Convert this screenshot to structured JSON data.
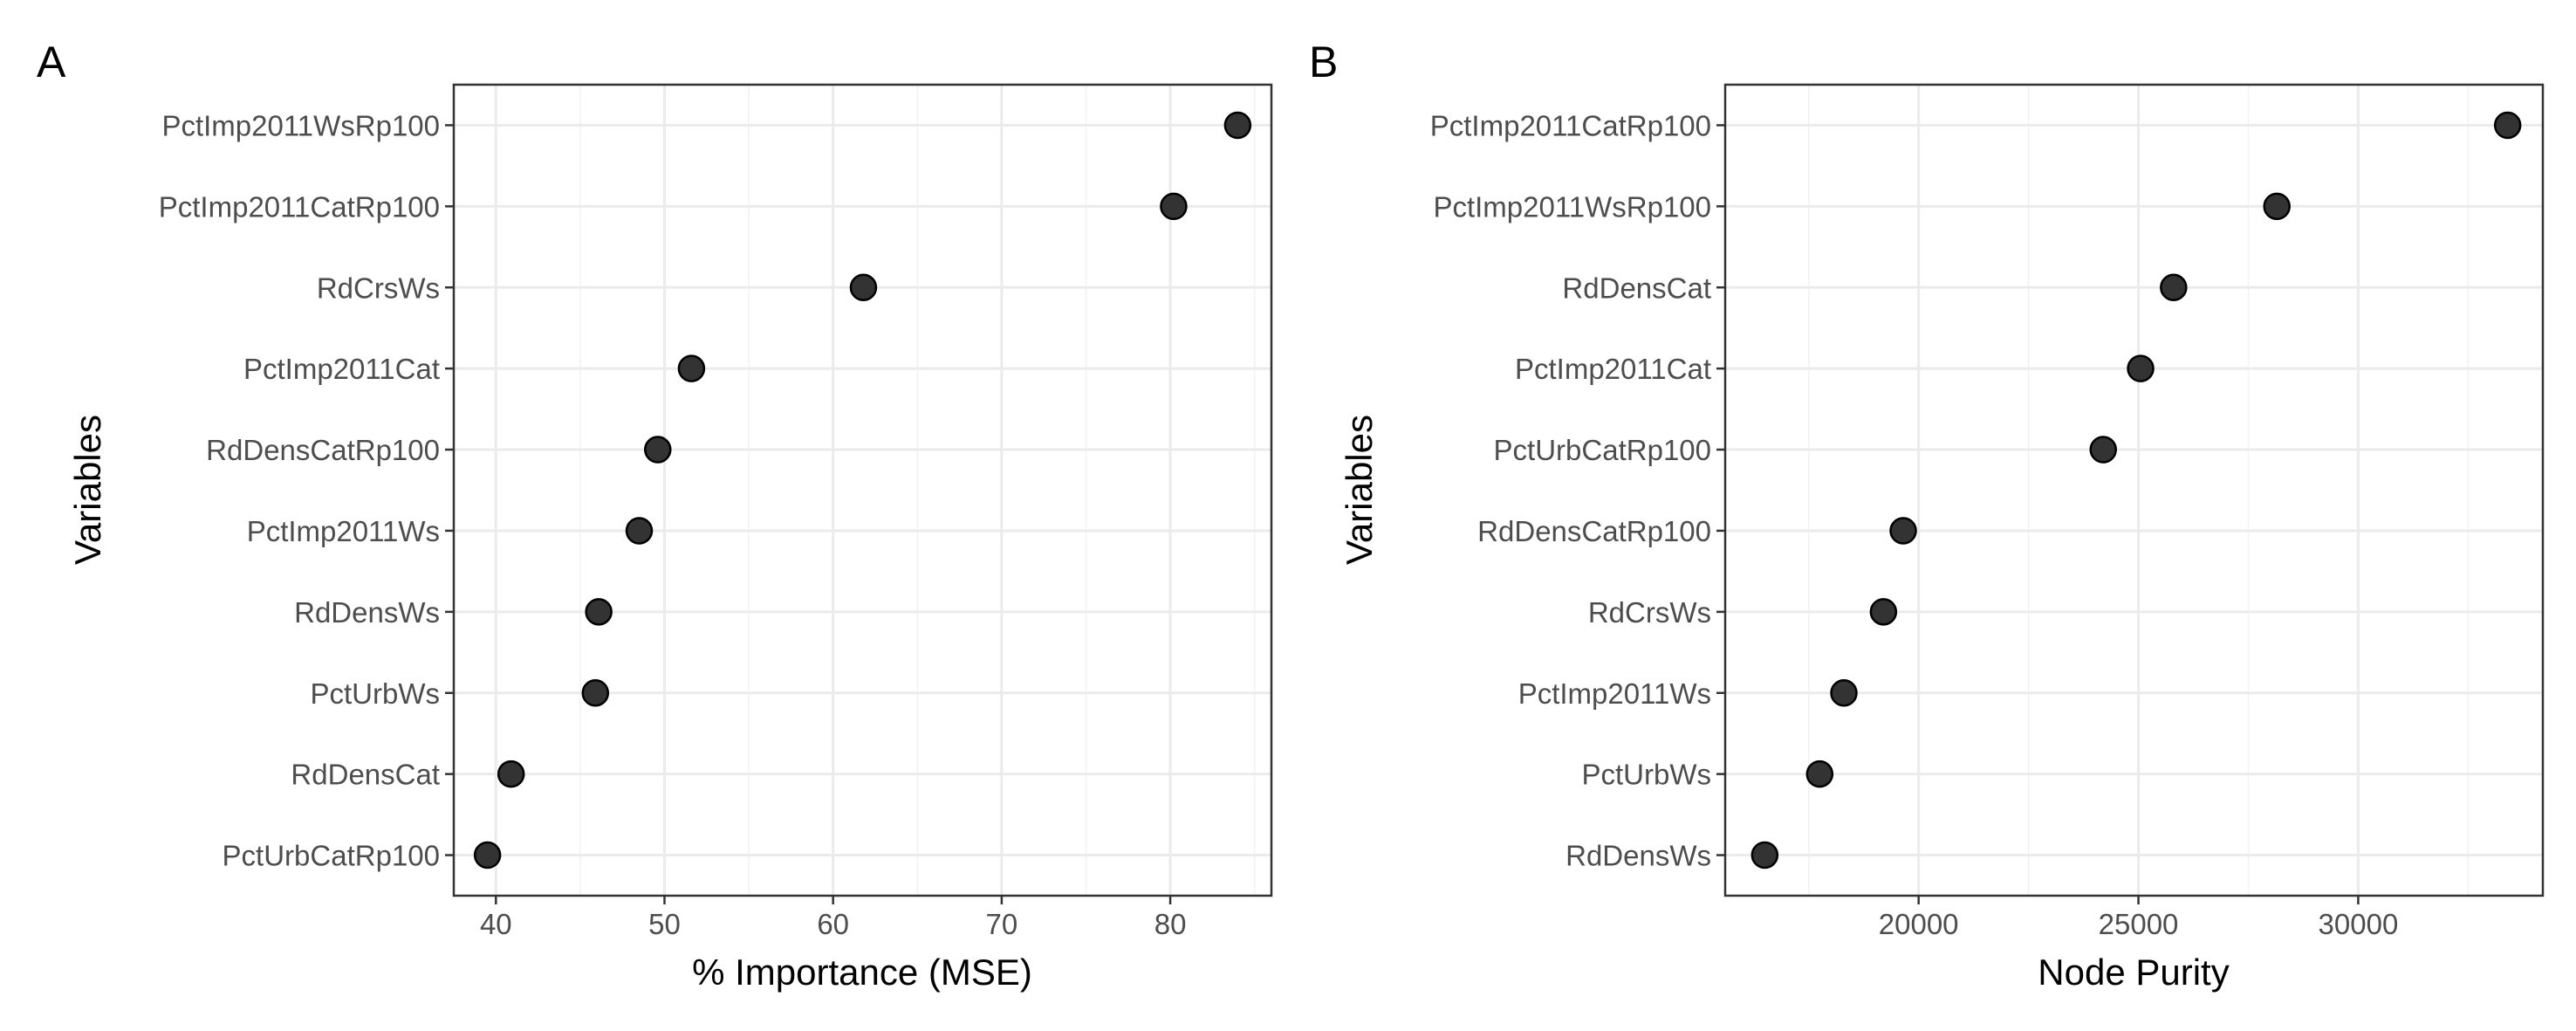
{
  "chart_data": [
    {
      "type": "scatter",
      "panel_label": "A",
      "xlabel": "% Importance (MSE)",
      "ylabel": "Variables",
      "xlim": [
        37.5,
        86
      ],
      "x_ticks": [
        40,
        50,
        60,
        70,
        80
      ],
      "x_tick_labels": [
        "40",
        "50",
        "60",
        "70",
        "80"
      ],
      "grid": true,
      "categories": [
        "PctImp2011WsRp100",
        "PctImp2011CatRp100",
        "RdCrsWs",
        "PctImp2011Cat",
        "RdDensCatRp100",
        "PctImp2011Ws",
        "RdDensWs",
        "PctUrbWs",
        "RdDensCat",
        "PctUrbCatRp100"
      ],
      "values": [
        84.0,
        80.2,
        61.8,
        51.6,
        49.6,
        48.5,
        46.1,
        45.9,
        40.9,
        39.5
      ]
    },
    {
      "type": "scatter",
      "panel_label": "B",
      "xlabel": "Node Purity",
      "ylabel": "Variables",
      "xlim": [
        15600,
        34200
      ],
      "x_ticks": [
        20000,
        25000,
        30000
      ],
      "x_tick_labels": [
        "20000",
        "25000",
        "30000"
      ],
      "grid": true,
      "categories": [
        "PctImp2011CatRp100",
        "PctImp2011WsRp100",
        "RdDensCat",
        "PctImp2011Cat",
        "PctUrbCatRp100",
        "RdDensCatRp100",
        "RdCrsWs",
        "PctImp2011Ws",
        "PctUrbWs",
        "RdDensWs"
      ],
      "values": [
        33400,
        28150,
        25800,
        25050,
        24200,
        19650,
        19200,
        18300,
        17750,
        16500
      ]
    }
  ]
}
